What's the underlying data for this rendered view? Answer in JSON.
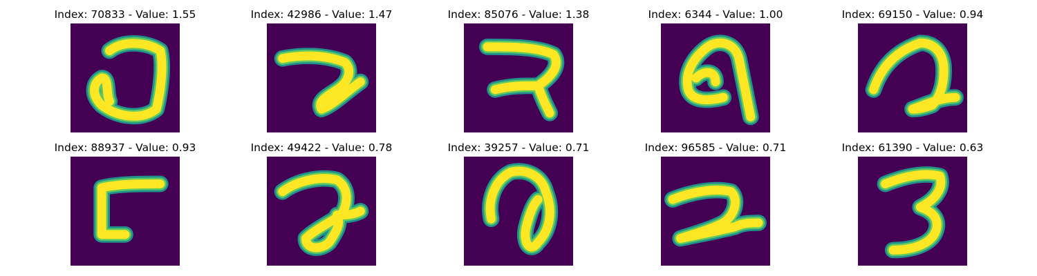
{
  "chart_data": {
    "type": "image-grid",
    "colormap": "viridis",
    "colors": {
      "background": "#440154",
      "edge": "#21918c",
      "mid": "#5ec962",
      "core": "#fde725"
    },
    "panels": [
      {
        "title": "Index: 70833 - Value: 1.55",
        "index": 70833,
        "value": 1.55
      },
      {
        "title": "Index: 42986 - Value: 1.47",
        "index": 42986,
        "value": 1.47
      },
      {
        "title": "Index: 85076 - Value: 1.38",
        "index": 85076,
        "value": 1.38
      },
      {
        "title": "Index: 6344 - Value: 1.00",
        "index": 6344,
        "value": 1.0
      },
      {
        "title": "Index: 69150 - Value: 0.94",
        "index": 69150,
        "value": 0.94
      },
      {
        "title": "Index: 88937 - Value: 0.93",
        "index": 88937,
        "value": 0.93
      },
      {
        "title": "Index: 49422 - Value: 0.78",
        "index": 49422,
        "value": 0.78
      },
      {
        "title": "Index: 39257 - Value: 0.71",
        "index": 39257,
        "value": 0.71
      },
      {
        "title": "Index: 96585 - Value: 0.71",
        "index": 96585,
        "value": 0.71
      },
      {
        "title": "Index: 61390 - Value: 0.63",
        "index": 61390,
        "value": 0.63
      }
    ]
  }
}
